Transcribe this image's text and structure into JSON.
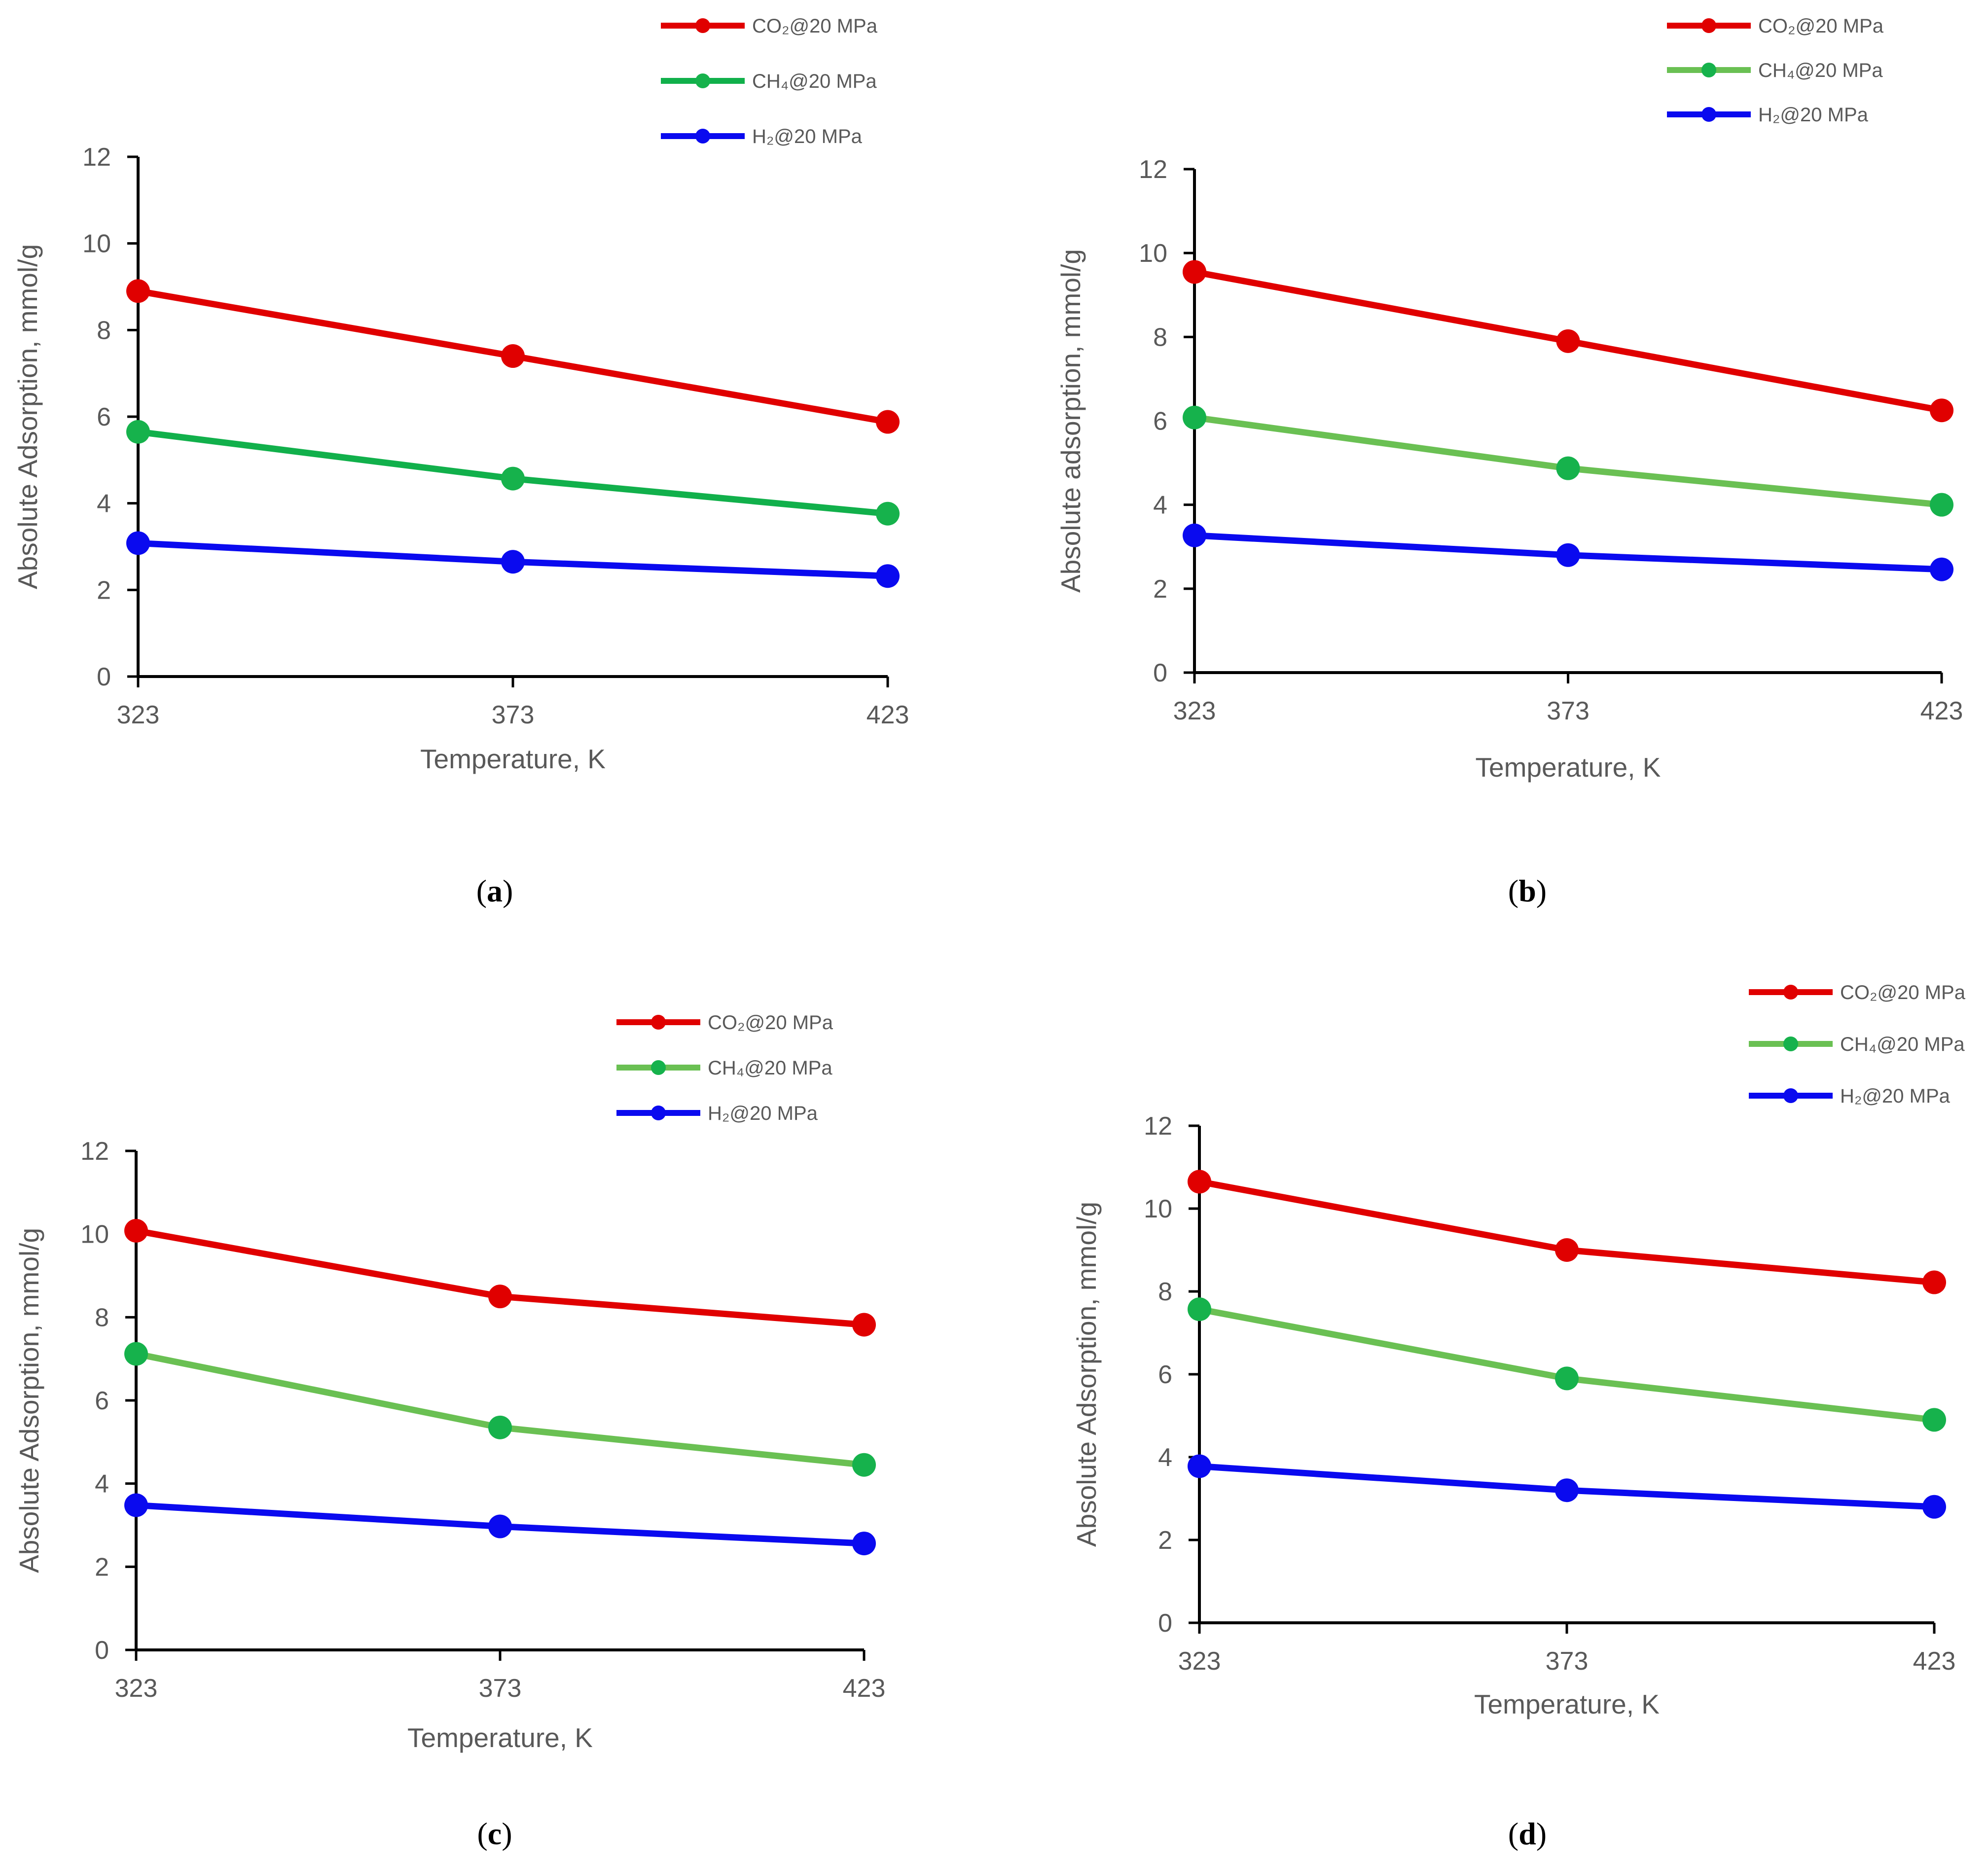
{
  "colors": {
    "co2": "#e00000",
    "ch4_a": "#11b04b",
    "ch4": "#6ac053",
    "h2": "#0a0aef",
    "marker_ch4": "#16b24c",
    "axis": "#000000",
    "text": "#595959"
  },
  "chart_data": [
    {
      "panel": "a",
      "type": "line",
      "xlabel": "Temperature, K",
      "ylabel": "Absolute Adsorption, mmol/g",
      "x": [
        323,
        373,
        423
      ],
      "xticks": [
        "323",
        "373",
        "423"
      ],
      "ylim": [
        0,
        12
      ],
      "yticks": [
        "0",
        "2",
        "4",
        "6",
        "8",
        "10",
        "12"
      ],
      "grid": false,
      "legend_position": "top-right",
      "series": [
        {
          "name": "CO₂@20 MPa",
          "color": "co2",
          "values": [
            8.9,
            7.4,
            5.88
          ]
        },
        {
          "name": "CH₄@20 MPa",
          "color": "ch4_a",
          "values": [
            5.65,
            4.57,
            3.76
          ]
        },
        {
          "name": "H₂@20 MPa",
          "color": "h2",
          "values": [
            3.08,
            2.65,
            2.32
          ]
        }
      ],
      "label_open": "(",
      "label_letter": "a",
      "label_close": ")"
    },
    {
      "panel": "b",
      "type": "line",
      "xlabel": "Temperature, K",
      "ylabel": "Absolute adsorption, mmol/g",
      "x": [
        323,
        373,
        423
      ],
      "xticks": [
        "323",
        "373",
        "423"
      ],
      "ylim": [
        0,
        12
      ],
      "yticks": [
        "0",
        "2",
        "4",
        "6",
        "8",
        "10",
        "12"
      ],
      "grid": false,
      "legend_position": "top-right",
      "series": [
        {
          "name": "CO₂@20 MPa",
          "color": "co2",
          "values": [
            9.55,
            7.9,
            6.25
          ]
        },
        {
          "name": "CH₄@20 MPa",
          "color": "ch4",
          "values": [
            6.08,
            4.87,
            4.0
          ]
        },
        {
          "name": "H₂@20 MPa",
          "color": "h2",
          "values": [
            3.27,
            2.8,
            2.46
          ]
        }
      ],
      "label_open": "(",
      "label_letter": "b",
      "label_close": ")"
    },
    {
      "panel": "c",
      "type": "line",
      "xlabel": "Temperature, K",
      "ylabel": "Absolute Adsorption, mmol/g",
      "x": [
        323,
        373,
        423
      ],
      "xticks": [
        "323",
        "373",
        "423"
      ],
      "ylim": [
        0,
        12
      ],
      "yticks": [
        "0",
        "2",
        "4",
        "6",
        "8",
        "10",
        "12"
      ],
      "grid": false,
      "legend_position": "top-right",
      "series": [
        {
          "name": "CO₂@20 MPa",
          "color": "co2",
          "values": [
            10.08,
            8.5,
            7.82
          ]
        },
        {
          "name": "CH₄@20 MPa",
          "color": "ch4",
          "values": [
            7.12,
            5.35,
            4.45
          ]
        },
        {
          "name": "H₂@20 MPa",
          "color": "h2",
          "values": [
            3.48,
            2.97,
            2.56
          ]
        }
      ],
      "label_open": "(",
      "label_letter": "c",
      "label_close": ")"
    },
    {
      "panel": "d",
      "type": "line",
      "xlabel": "Temperature, K",
      "ylabel": "Absolute Adsorption, mmol/g",
      "x": [
        323,
        373,
        423
      ],
      "xticks": [
        "323",
        "373",
        "423"
      ],
      "ylim": [
        0,
        12
      ],
      "yticks": [
        "0",
        "2",
        "4",
        "6",
        "8",
        "10",
        "12"
      ],
      "grid": false,
      "legend_position": "top-right",
      "series": [
        {
          "name": "CO₂@20 MPa",
          "color": "co2",
          "values": [
            10.65,
            9.0,
            8.22
          ]
        },
        {
          "name": "CH₄@20 MPa",
          "color": "ch4",
          "values": [
            7.57,
            5.9,
            4.9
          ]
        },
        {
          "name": "H₂@20 MPa",
          "color": "h2",
          "values": [
            3.78,
            3.2,
            2.8
          ]
        }
      ],
      "label_open": "(",
      "label_letter": "d",
      "label_close": ")"
    }
  ]
}
